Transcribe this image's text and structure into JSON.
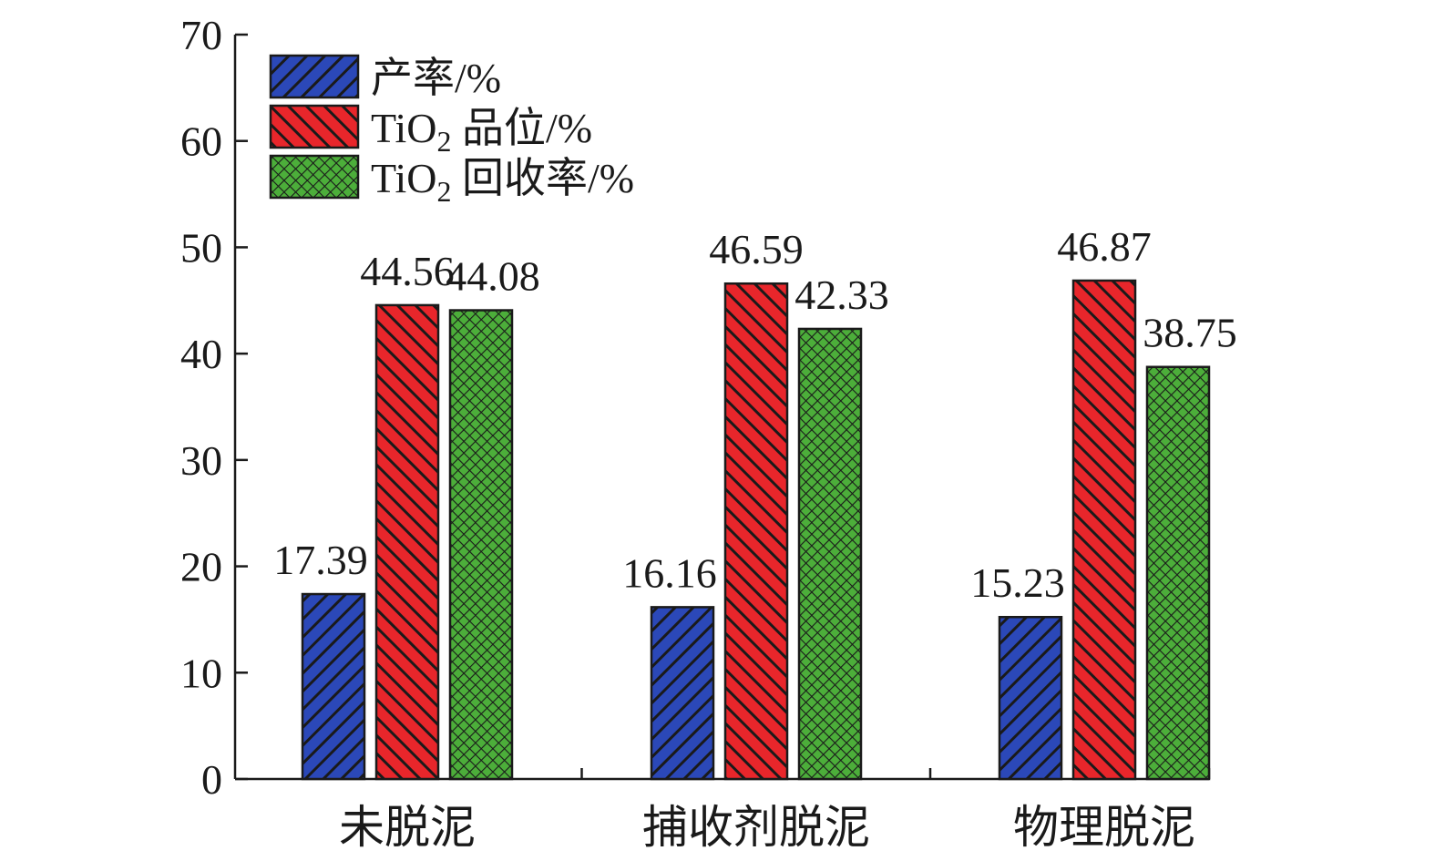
{
  "chart_data": {
    "type": "bar",
    "categories": [
      "未脱泥",
      "捕收剂脱泥",
      "物理脱泥"
    ],
    "series": [
      {
        "name": "产率/%",
        "legend_main": "产率/%",
        "legend_sub": "",
        "legend_suffix": "",
        "values": [
          17.39,
          16.16,
          15.23
        ],
        "color": "#2b48b8",
        "pattern": "diagonal"
      },
      {
        "name": "TiO2 品位/%",
        "legend_main": "TiO",
        "legend_sub": "2",
        "legend_suffix": " 品位/%",
        "values": [
          44.56,
          46.59,
          46.87
        ],
        "color": "#e8262b",
        "pattern": "diagonal-reverse"
      },
      {
        "name": "TiO2 回收率/%",
        "legend_main": "TiO",
        "legend_sub": "2",
        "legend_suffix": " 回收率/%",
        "values": [
          44.08,
          42.33,
          38.75
        ],
        "color": "#4cae3a",
        "pattern": "crosshatch"
      }
    ],
    "value_labels": [
      [
        "17.39",
        "16.16",
        "15.23"
      ],
      [
        "44.56",
        "46.59",
        "46.87"
      ],
      [
        "44.08",
        "42.33",
        "38.75"
      ]
    ],
    "title": "",
    "xlabel": "",
    "ylabel": "",
    "ylim": [
      0,
      70
    ],
    "yticks": [
      0,
      10,
      20,
      30,
      40,
      50,
      60,
      70
    ],
    "ytick_labels": [
      "0",
      "10",
      "20",
      "30",
      "40",
      "50",
      "60",
      "70"
    ],
    "grid": false,
    "legend_position": "top-left"
  }
}
